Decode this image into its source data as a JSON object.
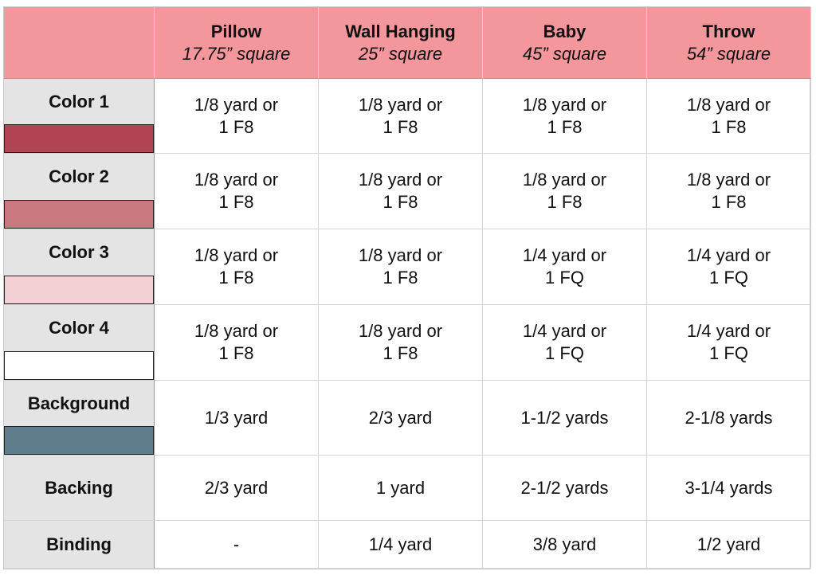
{
  "columns": [
    {
      "name": "Pillow",
      "size": "17.75” square"
    },
    {
      "name": "Wall Hanging",
      "size": "25” square"
    },
    {
      "name": "Baby",
      "size": "45” square"
    },
    {
      "name": "Throw",
      "size": "54” square"
    }
  ],
  "rows": [
    {
      "label": "Color 1",
      "swatch": "#b04452",
      "cells": [
        "1/8 yard or\n1 F8",
        "1/8 yard or\n1 F8",
        "1/8 yard or\n1 F8",
        "1/8 yard or\n1 F8"
      ]
    },
    {
      "label": "Color 2",
      "swatch": "#c97880",
      "cells": [
        "1/8 yard or\n1 F8",
        "1/8 yard or\n1 F8",
        "1/8 yard or\n1 F8",
        "1/8 yard or\n1 F8"
      ]
    },
    {
      "label": "Color 3",
      "swatch": "#f2d0d4",
      "cells": [
        "1/8 yard or\n1 F8",
        "1/8 yard or\n1 F8",
        "1/4 yard or\n1 FQ",
        "1/4 yard or\n1 FQ"
      ]
    },
    {
      "label": "Color 4",
      "swatch": "#ffffff",
      "cells": [
        "1/8 yard or\n1 F8",
        "1/8 yard or\n1 F8",
        "1/4 yard or\n1 FQ",
        "1/4 yard or\n1 FQ"
      ]
    },
    {
      "label": "Background",
      "swatch": "#5f7d8c",
      "cells": [
        "1/3 yard",
        "2/3 yard",
        "1-1/2 yards",
        "2-1/8 yards"
      ]
    },
    {
      "label": "Backing",
      "cells": [
        "2/3 yard",
        "1 yard",
        "2-1/2 yards",
        "3-1/4 yards"
      ]
    },
    {
      "label": "Binding",
      "cells": [
        "-",
        "1/4 yard",
        "3/8 yard",
        "1/2 yard"
      ]
    }
  ]
}
